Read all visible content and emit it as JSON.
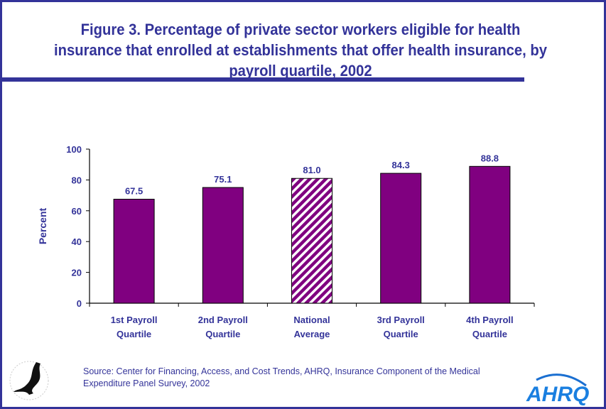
{
  "chart_data": {
    "type": "bar",
    "title": "Figure 3. Percentage of private sector workers eligible for health insurance that enrolled at establishments that offer health insurance, by payroll quartile, 2002",
    "categories": [
      [
        "1st Payroll",
        "Quartile"
      ],
      [
        "2nd Payroll",
        "Quartile"
      ],
      [
        "National",
        "Average"
      ],
      [
        "3rd Payroll",
        "Quartile"
      ],
      [
        "4th Payroll",
        "Quartile"
      ]
    ],
    "values": [
      67.5,
      75.1,
      81.0,
      84.3,
      88.8
    ],
    "data_labels": [
      "67.5",
      "75.1",
      "81.0",
      "84.3",
      "88.8"
    ],
    "patterns": [
      "solid",
      "solid",
      "diagonal-stripes",
      "solid",
      "solid"
    ],
    "ylabel": "Percent",
    "xlabel": "",
    "ylim": [
      0,
      100
    ],
    "yticks": [
      0,
      20,
      40,
      60,
      80,
      100
    ],
    "grid": false,
    "colors": {
      "bar": "#800080",
      "text": "#333399",
      "frame": "#333399"
    }
  },
  "footer": {
    "source_line1": "Source: Center for Financing, Access, and Cost Trends, AHRQ, Insurance Component of the Medical",
    "source_line2": "Expenditure Panel Survey, 2002",
    "logos": [
      "DEPARTMENT OF HEALTH & HUMAN SERVICES USA",
      "AHRQ"
    ]
  }
}
